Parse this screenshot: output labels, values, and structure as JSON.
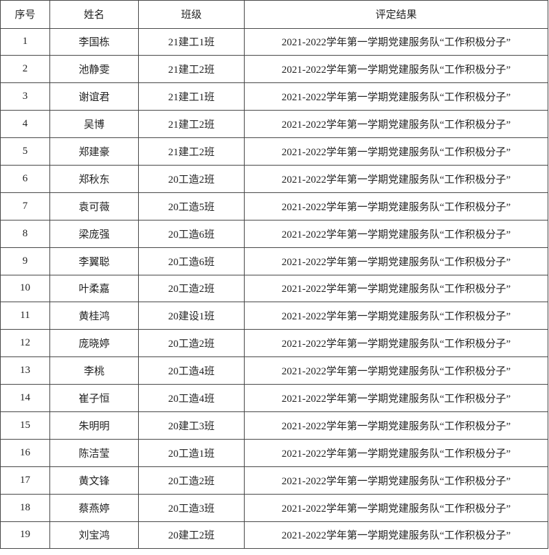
{
  "table": {
    "headers": [
      "序号",
      "姓名",
      "班级",
      "评定结果"
    ],
    "rows": [
      [
        "1",
        "李国栋",
        "21建工1班",
        "2021-2022学年第一学期党建服务队“工作积极分子”"
      ],
      [
        "2",
        "池静雯",
        "21建工2班",
        "2021-2022学年第一学期党建服务队“工作积极分子”"
      ],
      [
        "3",
        "谢谊君",
        "21建工1班",
        "2021-2022学年第一学期党建服务队“工作积极分子”"
      ],
      [
        "4",
        "吴博",
        "21建工2班",
        "2021-2022学年第一学期党建服务队“工作积极分子”"
      ],
      [
        "5",
        "郑建豪",
        "21建工2班",
        "2021-2022学年第一学期党建服务队“工作积极分子”"
      ],
      [
        "6",
        "郑秋东",
        "20工造2班",
        "2021-2022学年第一学期党建服务队“工作积极分子”"
      ],
      [
        "7",
        "袁可薇",
        "20工造5班",
        "2021-2022学年第一学期党建服务队“工作积极分子”"
      ],
      [
        "8",
        "梁庞强",
        "20工造6班",
        "2021-2022学年第一学期党建服务队“工作积极分子”"
      ],
      [
        "9",
        "李翼聪",
        "20工造6班",
        "2021-2022学年第一学期党建服务队“工作积极分子”"
      ],
      [
        "10",
        "叶柔嘉",
        "20工造2班",
        "2021-2022学年第一学期党建服务队“工作积极分子”"
      ],
      [
        "11",
        "黄桂鸿",
        "20建设1班",
        "2021-2022学年第一学期党建服务队“工作积极分子”"
      ],
      [
        "12",
        "庞晓婷",
        "20工造2班",
        "2021-2022学年第一学期党建服务队“工作积极分子”"
      ],
      [
        "13",
        "李桃",
        "20工造4班",
        "2021-2022学年第一学期党建服务队“工作积极分子”"
      ],
      [
        "14",
        "崔子恒",
        "20工造4班",
        "2021-2022学年第一学期党建服务队“工作积极分子”"
      ],
      [
        "15",
        "朱明明",
        "20建工3班",
        "2021-2022学年第一学期党建服务队“工作积极分子”"
      ],
      [
        "16",
        "陈洁莹",
        "20工造1班",
        "2021-2022学年第一学期党建服务队“工作积极分子”"
      ],
      [
        "17",
        "黄文锋",
        "20工造2班",
        "2021-2022学年第一学期党建服务队“工作积极分子”"
      ],
      [
        "18",
        "蔡燕婷",
        "20工造3班",
        "2021-2022学年第一学期党建服务队“工作积极分子”"
      ],
      [
        "19",
        "刘宝鸿",
        "20建工2班",
        "2021-2022学年第一学期党建服务队“工作积极分子”"
      ]
    ]
  }
}
